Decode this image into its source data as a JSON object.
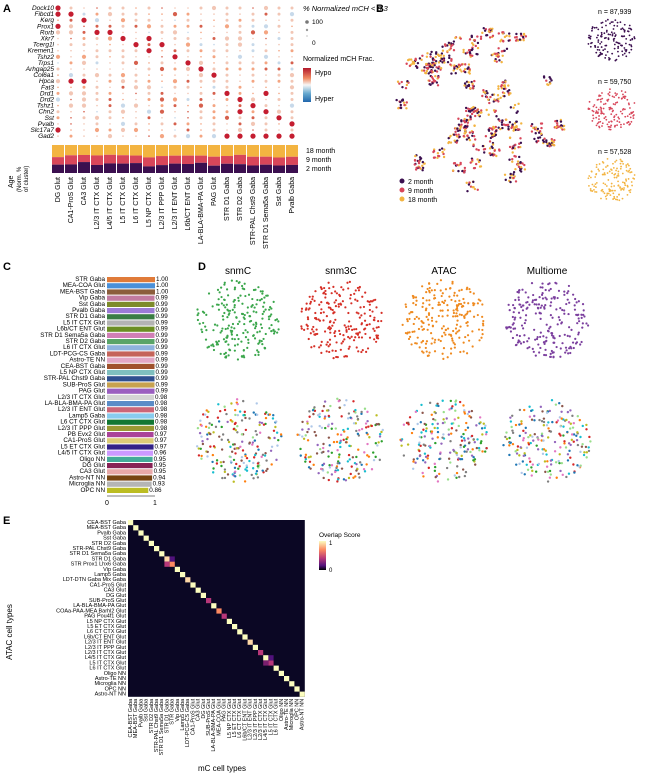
{
  "panels": {
    "A": {
      "label": "A",
      "genes": [
        "Dock10",
        "Fibcd1",
        "Kerg",
        "Prox1",
        "Rorb",
        "Xkr7",
        "Tcerg1l",
        "Kremen1",
        "Tshz2",
        "Trps1",
        "Arhgap25",
        "Col6a1",
        "Hpca",
        "Fat3",
        "Drd1",
        "Drd2",
        "Tshz1",
        "Chn2",
        "Sst",
        "Pvalb",
        "Slc17a7",
        "Gad2"
      ],
      "cell_types": [
        "DG Glut",
        "CA1-ProS Glut",
        "CA3 Glut",
        "L2/3 IT CTX Glut",
        "L4/5 IT CTX Glut",
        "L5 IT CTX Glut",
        "L6 IT CTX Glut",
        "L5 NP CTX Glut",
        "L2/3 IT PPP Glut",
        "L2/3 IT ENT Glut",
        "L6b/CT ENT Glut",
        "LA-BLA-BMA-PA Glut",
        "PAG Glut",
        "STR D1 Gaba",
        "STR D2 Gaba",
        "STR-PAL Chst9 Gaba",
        "STR D1 Sema5a Gaba",
        "Sst Gaba",
        "Pvalb Gaba"
      ],
      "size_legend_title": "% Normalized mCH < 0.3",
      "size_legend_values": [
        "100",
        "0"
      ],
      "color_legend_title": "Normalized mCH Frac.",
      "color_legend_low": "Hypo",
      "color_legend_high": "Hyper",
      "age_axis_label": "Age",
      "norm_label": "(Norm. %",
      "of_cluster_label": "of cluster)",
      "age_levels": [
        "18 month",
        "9 month",
        "2 month"
      ]
    },
    "B": {
      "label": "B",
      "counts": [
        "n = 87,939",
        "n = 59,750",
        "n = 57,528"
      ],
      "legend": [
        {
          "label": "2 month",
          "color": "#3b0f4f"
        },
        {
          "label": "9 month",
          "color": "#d8465a"
        },
        {
          "label": "18 month",
          "color": "#f3b441"
        }
      ]
    },
    "C": {
      "label": "C",
      "x_ticks": [
        "0",
        "1"
      ],
      "bar_colors": [
        "#e07b39",
        "#4a90d9",
        "#8b5e3c",
        "#c27ba0",
        "#7d8b2a",
        "#9c7bd6",
        "#3a7d44",
        "#b3b3b3",
        "#6b8e23",
        "#d17fb6",
        "#5aa469",
        "#8fb3de",
        "#c5645a",
        "#e3a8c6",
        "#a0522d",
        "#7fbfbf",
        "#2f4f8f",
        "#c8a24f",
        "#9b5fc0",
        "#d4d4d4",
        "#5b8cc7",
        "#cc6677",
        "#88ccee",
        "#117733",
        "#999933",
        "#aa4499",
        "#ddcc77",
        "#332288",
        "#cc99ff",
        "#44aa99",
        "#882255",
        "#e8a8a8",
        "#774411",
        "#b5b5b5",
        "#bcbd22"
      ],
      "bar_labels": [
        "STR Gaba",
        "MEA-COA Glut",
        "MEA-BST Gaba",
        "Vip Gaba",
        "Sst Gaba",
        "Pvalb Gaba",
        "STR D1 Gaba",
        "L5 IT CTX Glut",
        "L6b/CT ENT Glut",
        "STR D1 Sema5a Gaba",
        "STR D2 Gaba",
        "L6 IT CTX Glut",
        "LDT-PCG-CS Gaba",
        "Astro-TE NN",
        "CEA-BST Gaba",
        "L5 NP CTX Glut",
        "STR-PAL Chst9 Gaba",
        "SUB-ProS Glut",
        "PAG Glut",
        "L2/3 IT CTX Glut",
        "LA-BLA-BMA-PA Glut",
        "L2/3 IT ENT Glut",
        "Lamp5 Gaba",
        "L6 CT CTX Glut",
        "L2/3 IT PPP Glut",
        "PB Evx2 Glut",
        "CA1-ProS Glut",
        "L5 ET CTX Glut",
        "L4/5 IT CTX Glut",
        "Oligo NN",
        "DG Glut",
        "CA3 Glut",
        "Astro-NT NN",
        "Microglia NN",
        "OPC NN"
      ],
      "bar_value_labels": [
        "1.00",
        "1.00",
        "1.00",
        "0.99",
        "0.99",
        "0.99",
        "0.99",
        "0.99",
        "0.99",
        "0.99",
        "0.99",
        "0.99",
        "0.99",
        "0.99",
        "0.99",
        "0.99",
        "0.99",
        "0.99",
        "0.99",
        "0.98",
        "0.98",
        "0.98",
        "0.98",
        "0.98",
        "0.98",
        "0.97",
        "0.97",
        "0.97",
        "0.96",
        "0.95",
        "0.95",
        "0.95",
        "0.94",
        "0.93",
        "0.86"
      ]
    },
    "D": {
      "label": "D",
      "modalities": [
        {
          "label": "snmC",
          "color": "#3aa64b"
        },
        {
          "label": "snm3C",
          "color": "#d63027"
        },
        {
          "label": "ATAC",
          "color": "#ef8a1f"
        },
        {
          "label": "Multiome",
          "color": "#7b3f9e"
        }
      ]
    },
    "E": {
      "label": "E",
      "ylabel": "ATAC cell types",
      "xlabel": "mC cell types",
      "colorbar_title": "Overlap Score",
      "colorbar_ticks": [
        "1",
        "0"
      ],
      "row_labels": [
        "CEA-BST Gaba",
        "MEA-BST Gaba",
        "Pvalb Gaba",
        "Sst Gaba",
        "STR D2 Gaba",
        "STR-PAL Chst9 Gaba",
        "STR D1 Sema5a Gaba",
        "STR D1 Gaba",
        "STR Prox1 Lhx6 Gaba",
        "Vip Gaba",
        "Lamp5 Gaba",
        "LDT-DTN Gaba Mix Gaba",
        "CA1-ProS Glut",
        "CA3 Glut",
        "DG Glut",
        "SUB-ProS Glut",
        "LA-BLA-BMA-PA Glut",
        "COAa-PAA-MEA Barhl2 Glut",
        "PAG Pou4f1 Glut",
        "L5 NP CTX Glut",
        "L5 ET CTX Glut",
        "L6 CT CTX Glut",
        "L6b/CT ENT Glut",
        "L2/3 IT ENT Glut",
        "L2/3 IT PPP Glut",
        "L2/3 IT CTX Glut",
        "L4/5 IT CTX Glut",
        "L5 IT CTX Glut",
        "L6 IT CTX Glut",
        "Oligo NN",
        "Astro-TE NN",
        "Microglia NN",
        "OPC NN",
        "Astro-NT NN"
      ],
      "col_labels": [
        "CEA-BST Gaba",
        "MEA-BST Gaba",
        "Pvalb Gaba",
        "Sst Gaba",
        "STR D2 Gaba",
        "STR-PAL Chst9 Gaba",
        "STR D1 Sema5a Gaba",
        "STR D1 Gaba",
        "STR Gaba",
        "Vip Gaba",
        "Lamp5 Gaba",
        "LDT-PCG-CS Gaba",
        "CA1-ProS Glut",
        "CA3 Glut",
        "DG Glut",
        "SUB-ProS Glut",
        "LA-BLA-BMA-PA Glut",
        "MEA-COA Glut",
        "PAG Glut",
        "L5 NP CTX Glut",
        "L5 ET CTX Glut",
        "L6 CT CTX Glut",
        "L6b/CT ENT Glut",
        "L2/3 IT ENT Glut",
        "L2/3 IT PPP Glut",
        "L2/3 IT CTX Glut",
        "L4/5 IT CTX Glut",
        "L5 IT CTX Glut",
        "L6 IT CTX Glut",
        "Oligo NN",
        "Astro-TE NN",
        "Microglia NN",
        "OPC NN",
        "Astro-NT NN"
      ]
    }
  },
  "chart_data": [
    {
      "type": "scatter",
      "panel": "A",
      "title": "",
      "x_categories": [
        "DG Glut",
        "CA1-ProS Glut",
        "CA3 Glut",
        "L2/3 IT CTX Glut",
        "L4/5 IT CTX Glut",
        "L5 IT CTX Glut",
        "L6 IT CTX Glut",
        "L5 NP CTX Glut",
        "L2/3 IT PPP Glut",
        "L2/3 IT ENT Glut",
        "L6b/CT ENT Glut",
        "LA-BLA-BMA-PA Glut",
        "PAG Glut",
        "STR D1 Gaba",
        "STR D2 Gaba",
        "STR-PAL Chst9 Gaba",
        "STR D1 Sema5a Gaba",
        "Sst Gaba",
        "Pvalb Gaba"
      ],
      "y_categories": [
        "Dock10",
        "Fibcd1",
        "Kerg",
        "Prox1",
        "Rorb",
        "Xkr7",
        "Tcerg1l",
        "Kremen1",
        "Tshz2",
        "Trps1",
        "Arhgap25",
        "Col6a1",
        "Hpca",
        "Fat3",
        "Drd1",
        "Drd2",
        "Tshz1",
        "Chn2",
        "Sst",
        "Pvalb",
        "Slc17a7",
        "Gad2"
      ],
      "highlighted_cells": [
        [
          0,
          0
        ],
        [
          0,
          1
        ],
        [
          1,
          1
        ],
        [
          2,
          2
        ],
        [
          0,
          3
        ],
        [
          3,
          4
        ],
        [
          4,
          4
        ],
        [
          5,
          5
        ],
        [
          7,
          5
        ],
        [
          6,
          6
        ],
        [
          8,
          6
        ],
        [
          7,
          7
        ],
        [
          9,
          8
        ],
        [
          10,
          9
        ],
        [
          11,
          10
        ],
        [
          12,
          11
        ],
        [
          1,
          12
        ],
        [
          2,
          12
        ],
        [
          13,
          14
        ],
        [
          16,
          14
        ],
        [
          14,
          15
        ],
        [
          15,
          16
        ],
        [
          14,
          17
        ],
        [
          16,
          17
        ],
        [
          17,
          18
        ],
        [
          18,
          19
        ],
        [
          0,
          20
        ],
        [
          13,
          21
        ],
        [
          14,
          21
        ],
        [
          15,
          21
        ],
        [
          16,
          21
        ],
        [
          17,
          21
        ],
        [
          18,
          21
        ]
      ],
      "size_legend": [
        100,
        0
      ],
      "color_scale": [
        "Hypo",
        "Hyper"
      ]
    },
    {
      "type": "bar",
      "panel": "C",
      "title": "",
      "categories": [
        "STR Gaba",
        "MEA-COA Glut",
        "MEA-BST Gaba",
        "Vip Gaba",
        "Sst Gaba",
        "Pvalb Gaba",
        "STR D1 Gaba",
        "L5 IT CTX Glut",
        "L6b/CT ENT Glut",
        "STR D1 Sema5a Gaba",
        "STR D2 Gaba",
        "L6 IT CTX Glut",
        "LDT-PCG-CS Gaba",
        "Astro-TE NN",
        "CEA-BST Gaba",
        "L5 NP CTX Glut",
        "STR-PAL Chst9 Gaba",
        "SUB-ProS Glut",
        "PAG Glut",
        "L2/3 IT CTX Glut",
        "LA-BLA-BMA-PA Glut",
        "L2/3 IT ENT Glut",
        "Lamp5 Gaba",
        "L6 CT CTX Glut",
        "L2/3 IT PPP Glut",
        "PB Evx2 Glut",
        "CA1-ProS Glut",
        "L5 ET CTX Glut",
        "L4/5 IT CTX Glut",
        "Oligo NN",
        "DG Glut",
        "CA3 Glut",
        "Astro-NT NN",
        "Microglia NN",
        "OPC NN"
      ],
      "values": [
        1.0,
        1.0,
        1.0,
        0.99,
        0.99,
        0.99,
        0.99,
        0.99,
        0.99,
        0.99,
        0.99,
        0.99,
        0.99,
        0.99,
        0.99,
        0.99,
        0.99,
        0.99,
        0.99,
        0.98,
        0.98,
        0.98,
        0.98,
        0.98,
        0.98,
        0.97,
        0.97,
        0.97,
        0.96,
        0.95,
        0.95,
        0.95,
        0.94,
        0.93,
        0.86
      ],
      "xlim": [
        0,
        1
      ],
      "orientation": "horizontal"
    },
    {
      "type": "heatmap",
      "panel": "E",
      "title": "",
      "xlabel": "mC cell types",
      "ylabel": "ATAC cell types",
      "colorbar": {
        "title": "Overlap Score",
        "range": [
          0,
          1
        ]
      },
      "diagonal_values": [
        1,
        1,
        1,
        1,
        1,
        1,
        1,
        0.85,
        0.75,
        1,
        1,
        0.9,
        1,
        1,
        1,
        0.7,
        1,
        0.8,
        0.6,
        1,
        1,
        1,
        1,
        0.85,
        1,
        0.7,
        1,
        0.6,
        1,
        1,
        1,
        1,
        1,
        1
      ],
      "off_diagonal_note": ""
    }
  ]
}
